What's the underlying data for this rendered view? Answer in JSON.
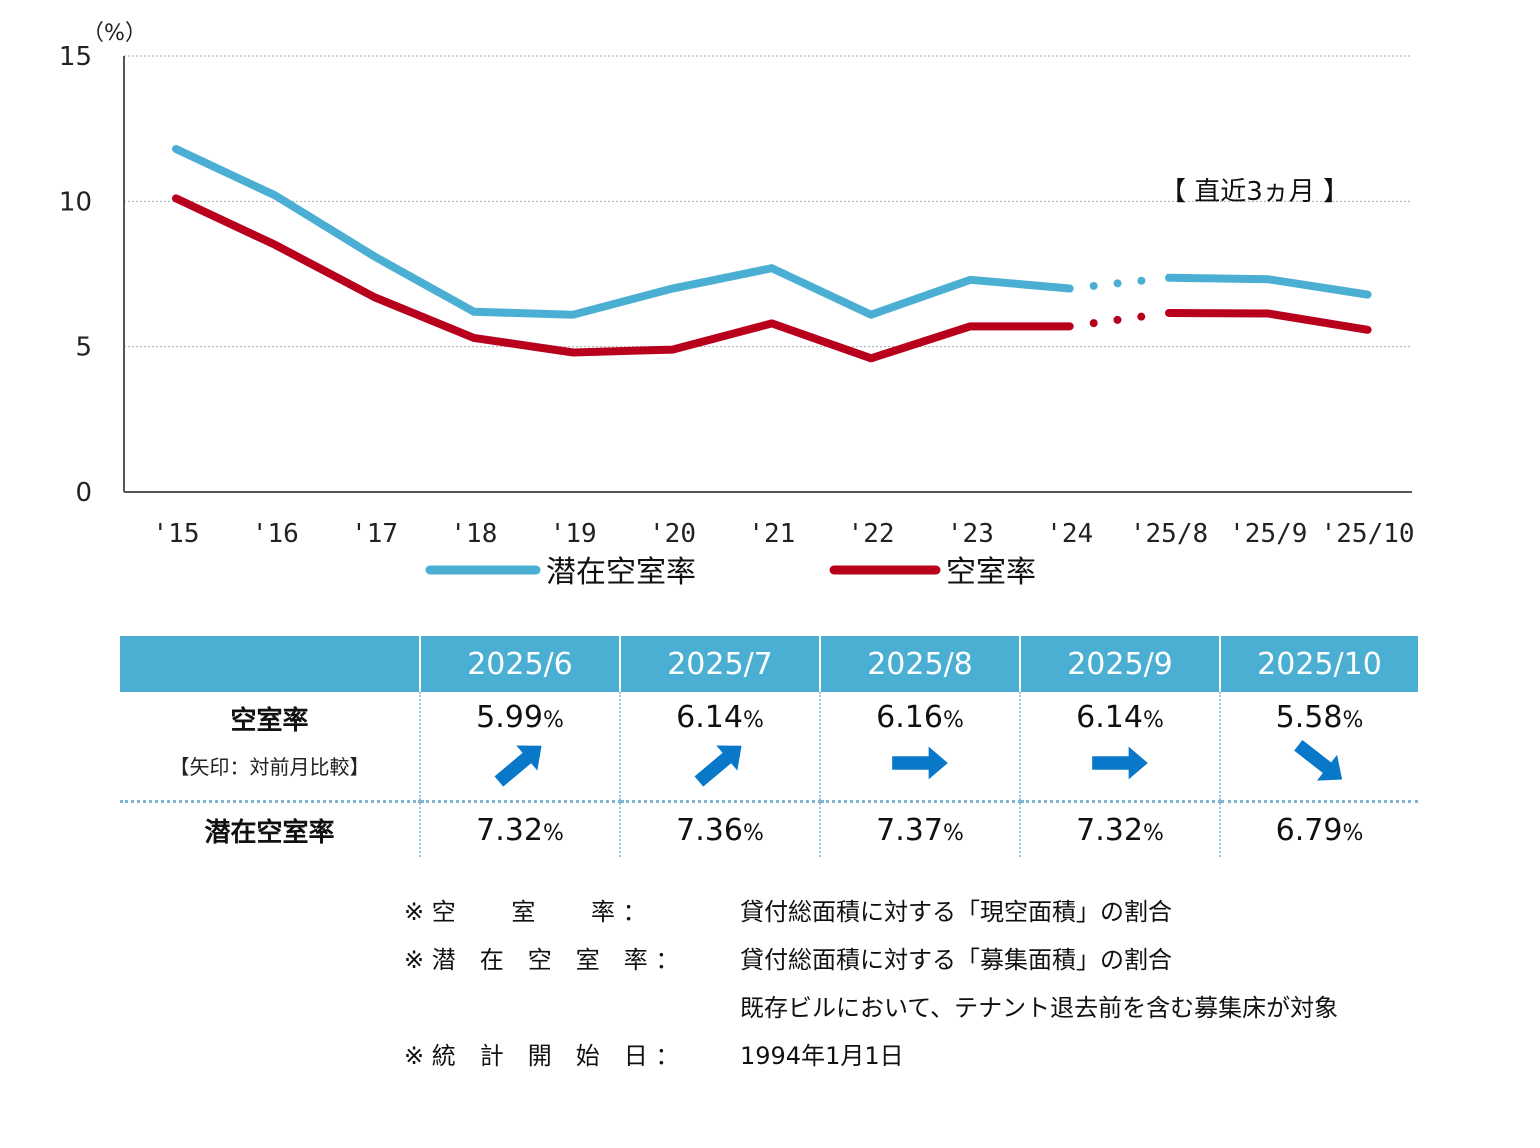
{
  "chart_data": {
    "type": "line",
    "unit_label": "（%）",
    "categories": [
      "'15",
      "'16",
      "'17",
      "'18",
      "'19",
      "'20",
      "'21",
      "'22",
      "'23",
      "'24",
      "'25/8",
      "'25/9",
      "'25/10"
    ],
    "ylim": [
      0,
      15
    ],
    "yticks": [
      "0",
      "5",
      "10",
      "15"
    ],
    "grid": true,
    "annotation": "【 直近3ヵ月 】",
    "series": [
      {
        "name": "潜在空室率",
        "color": "#4bafd4",
        "values": [
          11.8,
          10.2,
          8.1,
          6.2,
          6.1,
          7.0,
          7.7,
          6.1,
          7.3,
          7.0,
          7.37,
          7.32,
          6.79
        ]
      },
      {
        "name": "空室率",
        "color": "#b8001c",
        "values": [
          10.1,
          8.5,
          6.7,
          5.3,
          4.8,
          4.9,
          5.8,
          4.6,
          5.7,
          5.7,
          6.16,
          6.14,
          5.58
        ]
      }
    ]
  },
  "table": {
    "months": [
      "2025/6",
      "2025/7",
      "2025/8",
      "2025/9",
      "2025/10"
    ],
    "vacancy_label": "空室率",
    "vacancy_sub": "【矢印：対前月比較】",
    "vacancy": [
      "5.99",
      "6.14",
      "6.16",
      "6.14",
      "5.58"
    ],
    "arrows": [
      "up",
      "up",
      "flat",
      "flat",
      "down"
    ],
    "potential_label": "潜在空室率",
    "potential": [
      "7.32",
      "7.36",
      "7.37",
      "7.32",
      "6.79"
    ],
    "pct": "%",
    "arrow_color": "#0a78c8"
  },
  "notes": [
    {
      "key": "※ 空　　 室　　 率 ：",
      "value": "貸付総面積に対する「現空面積」の割合"
    },
    {
      "key": "※ 潜　在　空　室　率 ：",
      "value": "貸付総面積に対する「募集面積」の割合"
    },
    {
      "key": "",
      "value": "既存ビルにおいて、テナント退去前を含む募集床が対象"
    },
    {
      "key": "※ 統　計　開　始　日 ：",
      "value": "1994年1月1日"
    }
  ]
}
